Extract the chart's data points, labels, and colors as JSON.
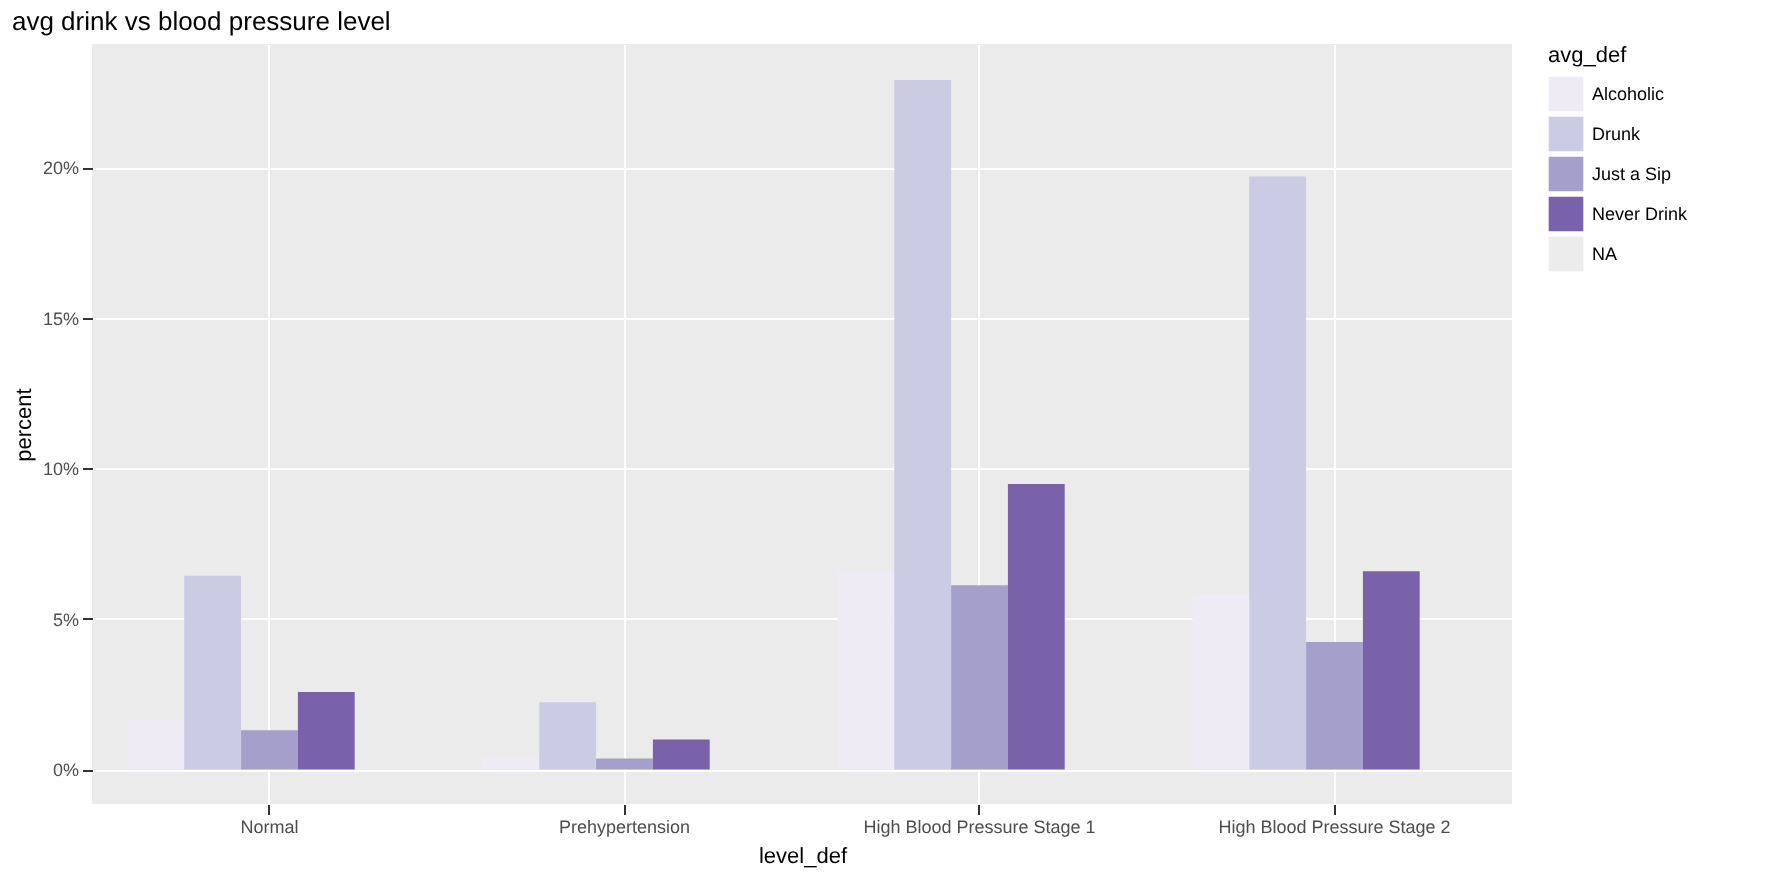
{
  "chart_data": {
    "type": "bar",
    "title": "avg drink vs blood pressure level",
    "xlabel": "level_def",
    "ylabel": "percent",
    "legend_title": "avg_def",
    "categories": [
      "Normal",
      "Prehypertension",
      "High Blood Pressure Stage 1",
      "High Blood Pressure Stage 2"
    ],
    "series": [
      {
        "name": "Alcoholic",
        "color": "#efebf4",
        "values": [
          1.66,
          0.4,
          6.56,
          5.8
        ]
      },
      {
        "name": "Drunk",
        "color": "#cbcbe3",
        "values": [
          6.43,
          2.23,
          22.9,
          19.7
        ]
      },
      {
        "name": "Just a Sip",
        "color": "#a59fcb",
        "values": [
          1.3,
          0.36,
          6.12,
          4.23
        ]
      },
      {
        "name": "Never Drink",
        "color": "#7a62ab",
        "values": [
          2.57,
          0.99,
          9.48,
          6.58
        ]
      },
      {
        "name": "NA",
        "color": "#ececec",
        "values": [
          null,
          null,
          null,
          null
        ]
      }
    ],
    "ylim": [
      -1.15,
      24.1
    ],
    "yticks": [
      {
        "value": 0,
        "label": "0%"
      },
      {
        "value": 5,
        "label": "5%"
      },
      {
        "value": 10,
        "label": "10%"
      },
      {
        "value": 15,
        "label": "15%"
      },
      {
        "value": 20,
        "label": "20%"
      }
    ],
    "grid": true,
    "legend": "right"
  }
}
